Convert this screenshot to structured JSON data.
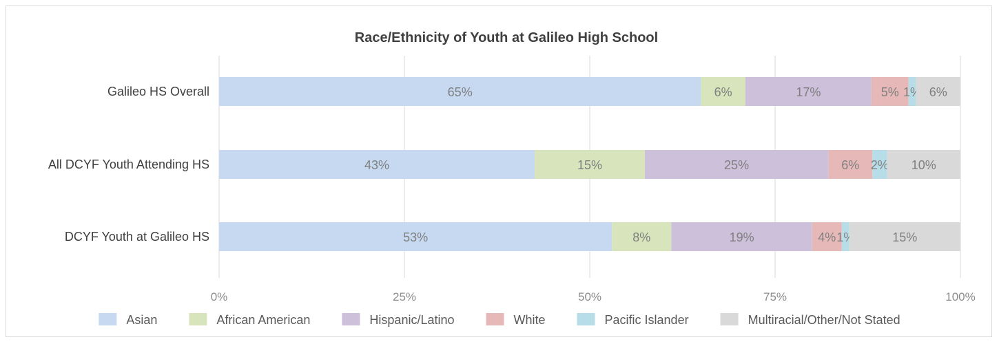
{
  "chart_data": {
    "type": "bar",
    "orientation": "horizontal",
    "stacked": "100%",
    "title": "Race/Ethnicity of Youth at Galileo High School",
    "categories": [
      "Galileo HS Overall",
      "All DCYF Youth Attending HS",
      "DCYF Youth at Galileo HS"
    ],
    "series": [
      {
        "name": "Asian",
        "color": "#c6d9f1",
        "values": [
          65,
          43,
          53
        ],
        "labels": [
          "65%",
          "43%",
          "53%"
        ]
      },
      {
        "name": "African American",
        "color": "#d8e4bc",
        "values": [
          6,
          15,
          8
        ],
        "labels": [
          "6%",
          "15%",
          "8%"
        ]
      },
      {
        "name": "Hispanic/Latino",
        "color": "#ccc0da",
        "values": [
          17,
          25,
          19
        ],
        "labels": [
          "17%",
          "25%",
          "19%"
        ]
      },
      {
        "name": "White",
        "color": "#e6b9b8",
        "values": [
          5,
          6,
          4
        ],
        "labels": [
          "5%",
          "6%",
          "4%"
        ]
      },
      {
        "name": "Pacific Islander",
        "color": "#b7dde8",
        "values": [
          1,
          2,
          1
        ],
        "labels": [
          "1%",
          "2%",
          "1%"
        ]
      },
      {
        "name": "Multiracial/Other/Not Stated",
        "color": "#d9d9d9",
        "values": [
          6,
          10,
          15
        ],
        "labels": [
          "6%",
          "10%",
          "15%"
        ]
      }
    ],
    "x_ticks": [
      "0%",
      "25%",
      "50%",
      "75%",
      "100%"
    ],
    "xlim": [
      0,
      100
    ],
    "grid": true,
    "legend_position": "bottom"
  }
}
